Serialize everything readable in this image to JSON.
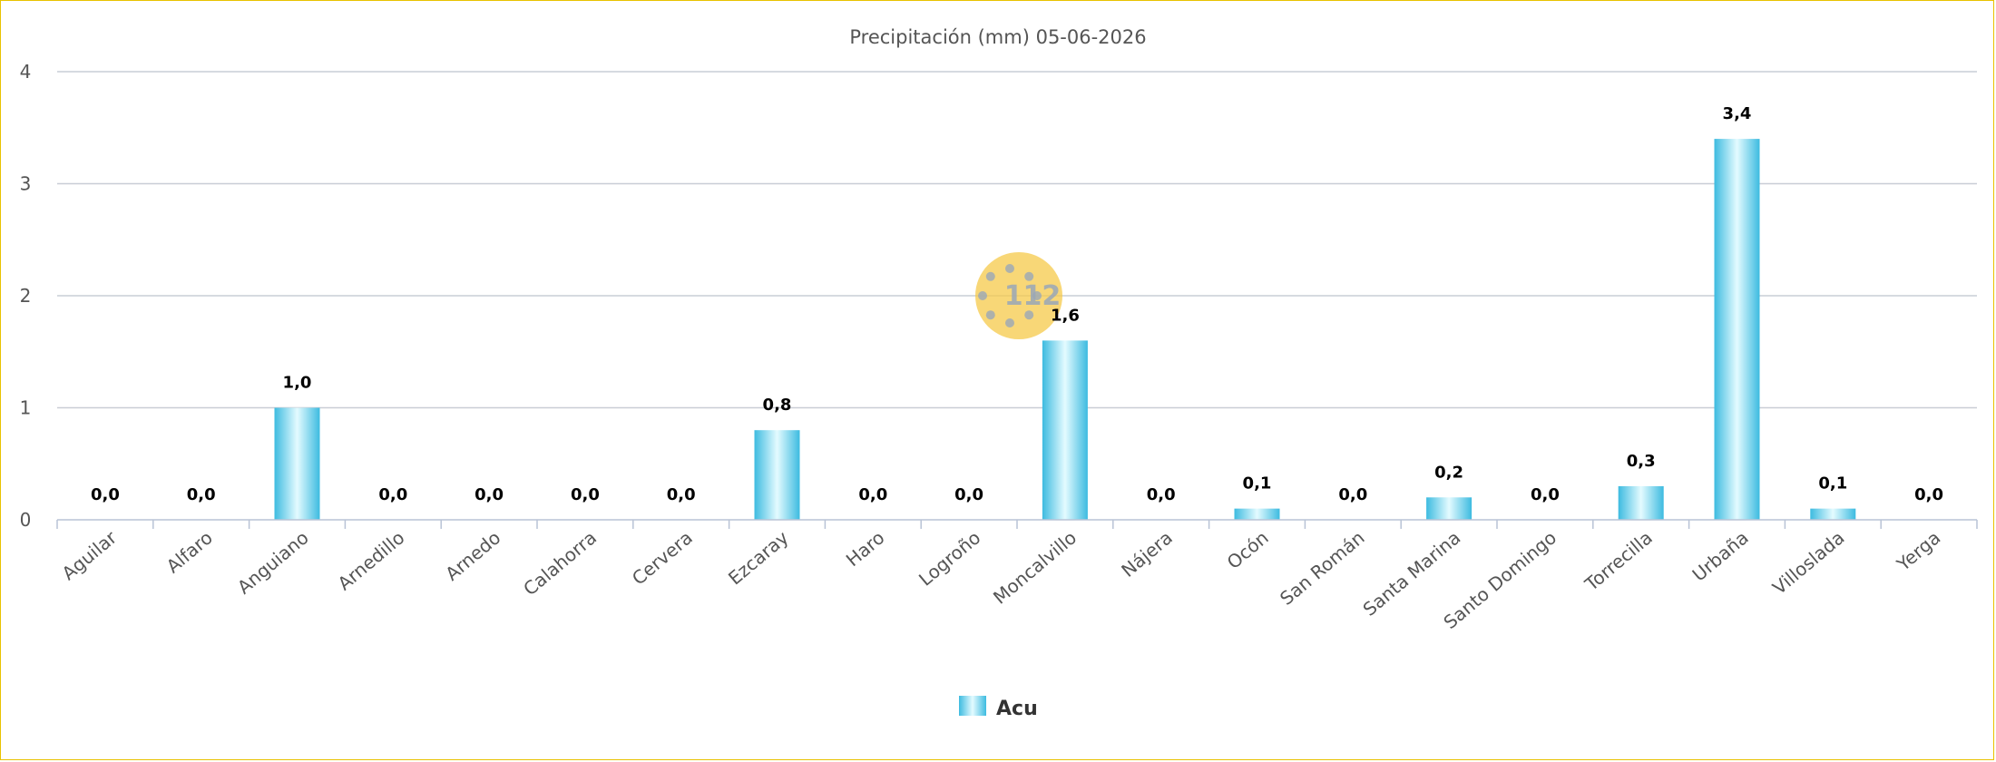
{
  "chart_data": {
    "type": "bar",
    "title": "Precipitación (mm) 05-06-2026",
    "categories": [
      "Aguilar",
      "Alfaro",
      "Anguiano",
      "Arnedillo",
      "Arnedo",
      "Calahorra",
      "Cervera",
      "Ezcaray",
      "Haro",
      "Logroño",
      "Moncalvillo",
      "Nájera",
      "Ocón",
      "San Román",
      "Santa Marina",
      "Santo Domingo",
      "Torrecilla",
      "Urbaña",
      "Villoslada",
      "Yerga"
    ],
    "series": [
      {
        "name": "Acu",
        "values": [
          0.0,
          0.0,
          1.0,
          0.0,
          0.0,
          0.0,
          0.0,
          0.8,
          0.0,
          0.0,
          1.6,
          0.0,
          0.1,
          0.0,
          0.2,
          0.0,
          0.3,
          3.4,
          0.1,
          0.0
        ],
        "labels": [
          "0,0",
          "0,0",
          "1,0",
          "0,0",
          "0,0",
          "0,0",
          "0,0",
          "0,8",
          "0,0",
          "0,0",
          "1,6",
          "0,0",
          "0,1",
          "0,0",
          "0,2",
          "0,0",
          "0,3",
          "3,4",
          "0,1",
          "0,0"
        ]
      }
    ],
    "yticks": [
      "0",
      "1",
      "2",
      "3",
      "4"
    ],
    "ylim": [
      0,
      4
    ],
    "grid": true,
    "legend_position": "bottom-center",
    "colors": {
      "bar_edge": "#3dbbe0",
      "bar_center": "#e4fbff",
      "frame": "#e8c200",
      "grid": "#c9cdd6"
    }
  },
  "watermark": {
    "text": "112",
    "color": "#f5c94a"
  }
}
